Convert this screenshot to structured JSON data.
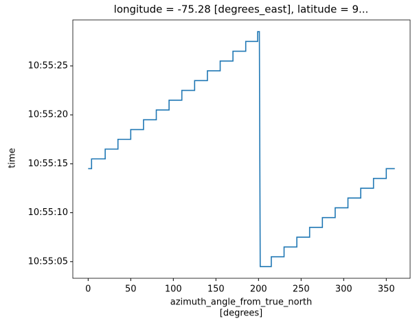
{
  "chart_data": {
    "type": "line",
    "title": "longitude = -75.28 [degrees_east], latitude = 9...",
    "xlabel": [
      "azimuth_angle_from_true_north",
      "[degrees]"
    ],
    "ylabel": "time",
    "x": [
      0,
      4,
      4,
      20,
      20,
      35,
      35,
      50,
      50,
      65,
      65,
      80,
      80,
      95,
      95,
      110,
      110,
      125,
      125,
      140,
      140,
      155,
      155,
      170,
      170,
      185,
      185,
      199,
      199,
      201,
      202,
      215,
      215,
      230,
      230,
      245,
      245,
      260,
      260,
      275,
      275,
      290,
      290,
      305,
      305,
      320,
      320,
      335,
      335,
      350,
      350,
      360
    ],
    "series": [
      {
        "color": "#1f77b4",
        "values": [
          14.5,
          14.5,
          15.5,
          15.5,
          16.5,
          16.5,
          17.5,
          17.5,
          18.5,
          18.5,
          19.5,
          19.5,
          20.5,
          20.5,
          21.5,
          21.5,
          22.5,
          22.5,
          23.5,
          23.5,
          24.5,
          24.5,
          25.5,
          25.5,
          26.5,
          26.5,
          27.5,
          27.5,
          28.5,
          28.5,
          4.5,
          4.5,
          5.5,
          5.5,
          6.5,
          6.5,
          7.5,
          7.5,
          8.5,
          8.5,
          9.5,
          9.5,
          10.5,
          10.5,
          11.5,
          11.5,
          12.5,
          12.5,
          13.5,
          13.5,
          14.5,
          14.5
        ]
      }
    ],
    "xlim": [
      -18,
      378
    ],
    "xticks": [
      0,
      50,
      100,
      150,
      200,
      250,
      300,
      350
    ],
    "ylim": [
      3.3,
      29.7
    ],
    "yticks": [
      {
        "value": 5,
        "label": "10:55:05"
      },
      {
        "value": 10,
        "label": "10:55:10"
      },
      {
        "value": 15,
        "label": "10:55:15"
      },
      {
        "value": 20,
        "label": "10:55:20"
      },
      {
        "value": 25,
        "label": "10:55:25"
      }
    ]
  }
}
